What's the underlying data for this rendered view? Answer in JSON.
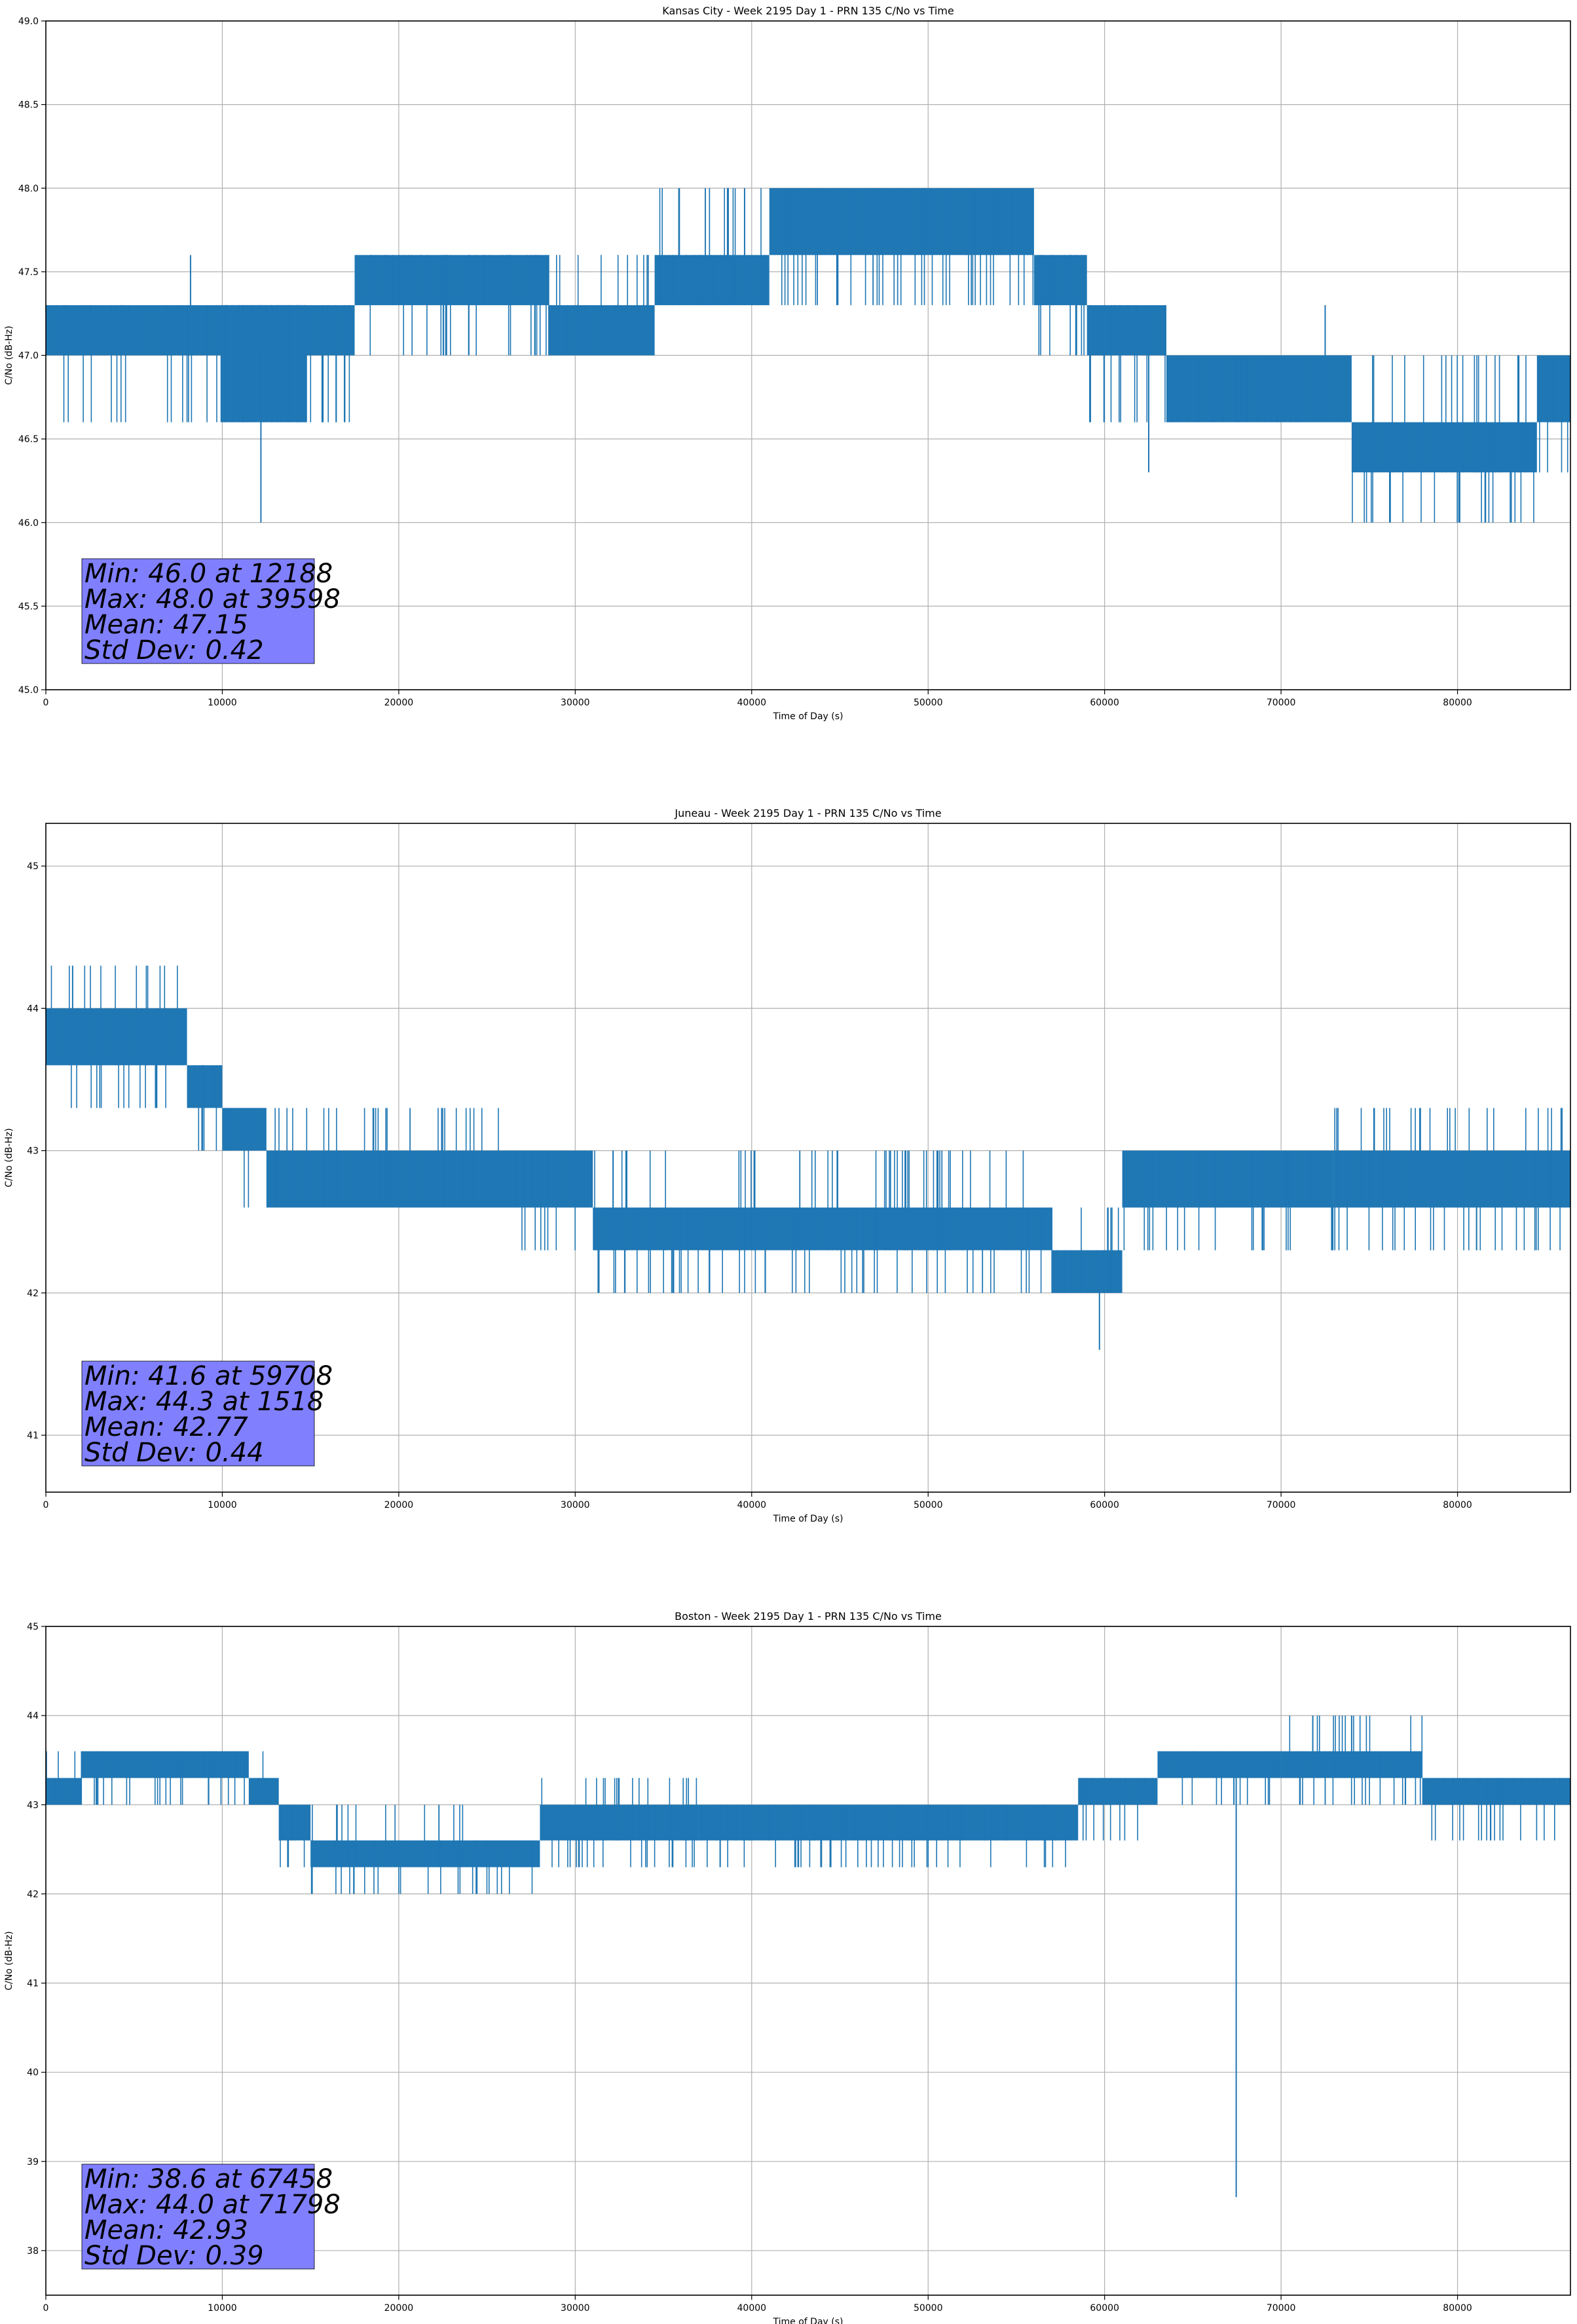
{
  "chart_data": [
    {
      "type": "line",
      "title": "Kansas City - Week 2195 Day 1 - PRN 135 C/No vs Time",
      "xlabel": "Time of Day (s)",
      "ylabel": "C/No (dB-Hz)",
      "xlim": [
        0,
        86400
      ],
      "ylim": [
        45.0,
        49.0
      ],
      "xticks": [
        0,
        10000,
        20000,
        30000,
        40000,
        50000,
        60000,
        70000,
        80000
      ],
      "yticks": [
        45.0,
        45.5,
        46.0,
        46.5,
        47.0,
        47.5,
        48.0,
        48.5,
        49.0
      ],
      "ytick_decimals": 1,
      "grid": true,
      "series_color": "#1f77b4",
      "quantization_step": 0.3,
      "segments": [
        {
          "x": [
            0,
            17500
          ],
          "lo": 47.0,
          "hi": 47.3,
          "noise_lo": 46.6,
          "noise_hi": 47.3
        },
        {
          "x": [
            9900,
            14800
          ],
          "lo": 46.6,
          "hi": 47.3,
          "noise_lo": 46.6,
          "noise_hi": 47.3
        },
        {
          "x": [
            17500,
            28500
          ],
          "lo": 47.3,
          "hi": 47.6,
          "noise_lo": 47.0,
          "noise_hi": 47.6
        },
        {
          "x": [
            28500,
            34500
          ],
          "lo": 47.0,
          "hi": 47.3,
          "noise_lo": 47.0,
          "noise_hi": 47.6
        },
        {
          "x": [
            34500,
            41000
          ],
          "lo": 47.3,
          "hi": 47.6,
          "noise_lo": 47.3,
          "noise_hi": 48.0
        },
        {
          "x": [
            41000,
            56000
          ],
          "lo": 47.6,
          "hi": 48.0,
          "noise_lo": 47.3,
          "noise_hi": 48.0
        },
        {
          "x": [
            56000,
            59000
          ],
          "lo": 47.3,
          "hi": 47.6,
          "noise_lo": 47.0,
          "noise_hi": 47.6
        },
        {
          "x": [
            59000,
            63500
          ],
          "lo": 47.0,
          "hi": 47.3,
          "noise_lo": 46.6,
          "noise_hi": 47.3
        },
        {
          "x": [
            63500,
            74000
          ],
          "lo": 46.6,
          "hi": 47.0,
          "noise_lo": 46.6,
          "noise_hi": 47.0
        },
        {
          "x": [
            74000,
            84500
          ],
          "lo": 46.3,
          "hi": 46.6,
          "noise_lo": 46.0,
          "noise_hi": 47.0
        },
        {
          "x": [
            84500,
            86400
          ],
          "lo": 46.6,
          "hi": 47.0,
          "noise_lo": 46.3,
          "noise_hi": 47.0
        }
      ],
      "extremes": [
        {
          "x": 12188,
          "y": 46.0
        },
        {
          "x": 39598,
          "y": 48.0
        },
        {
          "x": 8200,
          "y": 47.6
        },
        {
          "x": 62500,
          "y": 46.3
        },
        {
          "x": 72500,
          "y": 47.3
        }
      ],
      "stats": {
        "min": "Min: 46.0 at 12188",
        "max": "Max: 48.0 at 39598",
        "mean": "Mean: 47.15",
        "std": "Std Dev: 0.42"
      },
      "stats_box_color": "#8080ff"
    },
    {
      "type": "line",
      "title": "Juneau - Week 2195 Day 1 - PRN 135 C/No vs Time",
      "xlabel": "Time of Day (s)",
      "ylabel": "C/No (dB-Hz)",
      "xlim": [
        0,
        86400
      ],
      "ylim": [
        40.6,
        45.3
      ],
      "xticks": [
        0,
        10000,
        20000,
        30000,
        40000,
        50000,
        60000,
        70000,
        80000
      ],
      "yticks": [
        41,
        42,
        43,
        44,
        45
      ],
      "ytick_decimals": 0,
      "grid": true,
      "series_color": "#1f77b4",
      "quantization_step": 0.3,
      "segments": [
        {
          "x": [
            0,
            8000
          ],
          "lo": 43.6,
          "hi": 44.0,
          "noise_lo": 43.3,
          "noise_hi": 44.3
        },
        {
          "x": [
            8000,
            10000
          ],
          "lo": 43.3,
          "hi": 43.6,
          "noise_lo": 43.0,
          "noise_hi": 43.6
        },
        {
          "x": [
            10000,
            12500
          ],
          "lo": 43.0,
          "hi": 43.3,
          "noise_lo": 42.6,
          "noise_hi": 43.3
        },
        {
          "x": [
            12500,
            26500
          ],
          "lo": 42.6,
          "hi": 43.0,
          "noise_lo": 42.6,
          "noise_hi": 43.3
        },
        {
          "x": [
            26500,
            31000
          ],
          "lo": 42.6,
          "hi": 43.0,
          "noise_lo": 42.3,
          "noise_hi": 43.0
        },
        {
          "x": [
            31000,
            57000
          ],
          "lo": 42.3,
          "hi": 42.6,
          "noise_lo": 42.0,
          "noise_hi": 43.0
        },
        {
          "x": [
            57000,
            61000
          ],
          "lo": 42.0,
          "hi": 42.3,
          "noise_lo": 42.0,
          "noise_hi": 42.6
        },
        {
          "x": [
            61000,
            73000
          ],
          "lo": 42.6,
          "hi": 43.0,
          "noise_lo": 42.3,
          "noise_hi": 43.0
        },
        {
          "x": [
            73000,
            86400
          ],
          "lo": 42.6,
          "hi": 43.0,
          "noise_lo": 42.3,
          "noise_hi": 43.3
        }
      ],
      "extremes": [
        {
          "x": 59708,
          "y": 41.6
        },
        {
          "x": 1518,
          "y": 44.3
        }
      ],
      "stats": {
        "min": "Min: 41.6 at 59708",
        "max": "Max: 44.3 at 1518",
        "mean": "Mean: 42.77",
        "std": "Std Dev: 0.44"
      },
      "stats_box_color": "#8080ff"
    },
    {
      "type": "line",
      "title": "Boston - Week 2195 Day 1 - PRN 135 C/No vs Time",
      "xlabel": "Time of Day (s)",
      "ylabel": "C/No (dB-Hz)",
      "xlim": [
        0,
        86400
      ],
      "ylim": [
        37.5,
        45.0
      ],
      "xticks": [
        0,
        10000,
        20000,
        30000,
        40000,
        50000,
        60000,
        70000,
        80000
      ],
      "yticks": [
        38,
        39,
        40,
        41,
        42,
        43,
        44,
        45
      ],
      "ytick_decimals": 0,
      "grid": true,
      "series_color": "#1f77b4",
      "quantization_step": 0.3,
      "segments": [
        {
          "x": [
            0,
            2000
          ],
          "lo": 43.0,
          "hi": 43.3,
          "noise_lo": 43.0,
          "noise_hi": 43.6
        },
        {
          "x": [
            2000,
            11500
          ],
          "lo": 43.3,
          "hi": 43.6,
          "noise_lo": 43.0,
          "noise_hi": 43.6
        },
        {
          "x": [
            11500,
            13200
          ],
          "lo": 43.0,
          "hi": 43.3,
          "noise_lo": 43.0,
          "noise_hi": 43.6
        },
        {
          "x": [
            13200,
            15000
          ],
          "lo": 42.6,
          "hi": 43.0,
          "noise_lo": 42.3,
          "noise_hi": 43.0
        },
        {
          "x": [
            15000,
            25000
          ],
          "lo": 42.3,
          "hi": 42.6,
          "noise_lo": 42.0,
          "noise_hi": 43.0
        },
        {
          "x": [
            25000,
            28000
          ],
          "lo": 42.3,
          "hi": 42.6,
          "noise_lo": 42.0,
          "noise_hi": 42.6
        },
        {
          "x": [
            28000,
            37000
          ],
          "lo": 42.6,
          "hi": 43.0,
          "noise_lo": 42.3,
          "noise_hi": 43.3
        },
        {
          "x": [
            37000,
            58500
          ],
          "lo": 42.6,
          "hi": 43.0,
          "noise_lo": 42.3,
          "noise_hi": 43.0
        },
        {
          "x": [
            58500,
            63000
          ],
          "lo": 43.0,
          "hi": 43.3,
          "noise_lo": 42.6,
          "noise_hi": 43.3
        },
        {
          "x": [
            63000,
            70000
          ],
          "lo": 43.3,
          "hi": 43.6,
          "noise_lo": 43.0,
          "noise_hi": 43.6
        },
        {
          "x": [
            70000,
            78000
          ],
          "lo": 43.3,
          "hi": 43.6,
          "noise_lo": 43.0,
          "noise_hi": 44.0
        },
        {
          "x": [
            78000,
            86400
          ],
          "lo": 43.0,
          "hi": 43.3,
          "noise_lo": 42.6,
          "noise_hi": 43.3
        }
      ],
      "extremes": [
        {
          "x": 67458,
          "y": 38.6
        },
        {
          "x": 71798,
          "y": 44.0
        },
        {
          "x": 74000,
          "y": 44.0
        }
      ],
      "stats": {
        "min": "Min: 38.6 at 67458",
        "max": "Max: 44.0 at 71798",
        "mean": "Mean: 42.93",
        "std": "Std Dev: 0.39"
      },
      "stats_box_color": "#8080ff"
    }
  ]
}
